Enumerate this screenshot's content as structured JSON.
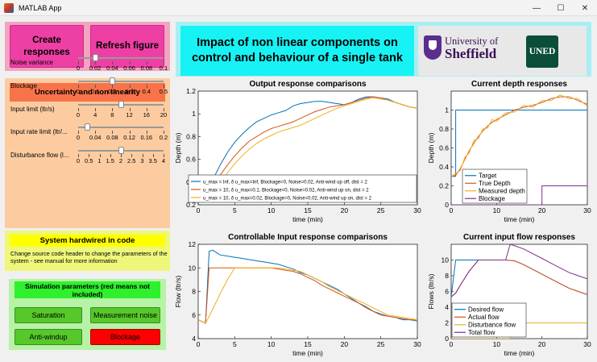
{
  "window": {
    "title": "MATLAB App",
    "minimize_glyph": "—",
    "maximize_glyph": "☐",
    "close_glyph": "✕"
  },
  "buttons": {
    "create": "Create responses",
    "refresh": "Refresh figure"
  },
  "header": {
    "title": "Impact of non linear components on control and behaviour of a single tank",
    "sheffield_line1": "University of",
    "sheffield_line2": "Sheffield",
    "uned": "UNED"
  },
  "uncertainty": {
    "title": "Uncertainty and non linearity",
    "sliders": [
      {
        "label": "Noise variance",
        "value": 0.02,
        "ticks": [
          "0",
          "0.02",
          "0.04",
          "0.06",
          "0.08",
          "0.1"
        ]
      },
      {
        "label": "Blockage",
        "value": 0.2,
        "ticks": [
          "0",
          "0.1",
          "0.2",
          "0.3",
          "0.4",
          "0.5"
        ]
      },
      {
        "label": "Input limit (ltr/s)",
        "value": 10,
        "ticks": [
          "0",
          "4",
          "8",
          "12",
          "16",
          "20"
        ]
      },
      {
        "label": "Input rate limit (ltr/...",
        "value": 0.02,
        "ticks": [
          "0",
          "0.04",
          "0.08",
          "0.12",
          "0.16",
          "0.2"
        ]
      },
      {
        "label": "Disturbance flow (l...",
        "value": 2,
        "ticks": [
          "0",
          "0.5",
          "1",
          "1.5",
          "2",
          "2.5",
          "3",
          "3.5",
          "4"
        ]
      }
    ]
  },
  "hardwired": {
    "title": "System hardwired in code",
    "text": "Change source code header to change the parameters of the system - see manual for more information"
  },
  "simulation": {
    "title": "Simulation parameters (red means not included)",
    "saturation": "Saturation",
    "measurement_noise": "Measurement noise",
    "anti_windup": "Anti-windup",
    "blockage": "Blockage",
    "colors": {
      "on": "#56c82a",
      "off": "#ff0000"
    }
  },
  "chart_data": [
    {
      "type": "line",
      "title": "Output response comparisons",
      "xlabel": "time (min)",
      "ylabel": "Depth (m)",
      "xlim": [
        0,
        30
      ],
      "ylim": [
        0.2,
        1.2
      ],
      "xticks": [
        0,
        5,
        10,
        15,
        20,
        25,
        30
      ],
      "yticks": [
        0.2,
        0.4,
        0.6,
        0.8,
        1,
        1.2
      ],
      "legend": [
        "u_max = Inf, δ u_max=Inf, Blockage=0, Noise=0.02, Anti-wind up off, dist = 2",
        "u_max = 10, δ u_max=0.1, Blockage=0, Noise=0.02, Anti-wind up on, dist = 2",
        "u_max = 10, δ u_max=0.02, Blockage=0, Noise=0.02, Anti-wind up on, dist = 2"
      ],
      "series": [
        {
          "name": "Inf",
          "color": "#0072bd",
          "x": [
            0,
            1,
            2,
            3,
            4,
            5,
            6,
            7,
            8,
            9,
            10,
            11,
            12,
            13,
            14,
            15,
            16,
            17,
            18,
            19,
            20,
            21,
            22,
            23,
            24,
            25,
            26,
            27,
            28,
            29,
            30
          ],
          "y": [
            0.25,
            0.3,
            0.42,
            0.55,
            0.66,
            0.75,
            0.82,
            0.88,
            0.93,
            0.96,
            0.99,
            1.01,
            1.03,
            1.07,
            1.09,
            1.1,
            1.11,
            1.11,
            1.1,
            1.09,
            1.08,
            1.1,
            1.13,
            1.15,
            1.15,
            1.14,
            1.13,
            1.1,
            1.08,
            1.06,
            1.05
          ]
        },
        {
          "name": "0.1",
          "color": "#d95319",
          "x": [
            0,
            1,
            2,
            3,
            4,
            5,
            6,
            7,
            8,
            9,
            10,
            11,
            12,
            13,
            14,
            15,
            16,
            17,
            18,
            19,
            20,
            21,
            22,
            23,
            24,
            25,
            26,
            27,
            28,
            29,
            30
          ],
          "y": [
            0.25,
            0.28,
            0.36,
            0.46,
            0.55,
            0.63,
            0.7,
            0.76,
            0.8,
            0.84,
            0.87,
            0.89,
            0.91,
            0.93,
            0.96,
            0.99,
            1.02,
            1.04,
            1.06,
            1.07,
            1.08,
            1.1,
            1.12,
            1.14,
            1.15,
            1.14,
            1.12,
            1.1,
            1.08,
            1.06,
            1.05
          ]
        },
        {
          "name": "0.02",
          "color": "#edb120",
          "x": [
            0,
            1,
            2,
            3,
            4,
            5,
            6,
            7,
            8,
            9,
            10,
            11,
            12,
            13,
            14,
            15,
            16,
            17,
            18,
            19,
            20,
            21,
            22,
            23,
            24,
            25,
            26,
            27,
            28,
            29,
            30
          ],
          "y": [
            0.25,
            0.26,
            0.31,
            0.39,
            0.48,
            0.56,
            0.63,
            0.69,
            0.74,
            0.78,
            0.81,
            0.84,
            0.86,
            0.88,
            0.9,
            0.93,
            0.96,
            0.99,
            1.02,
            1.05,
            1.07,
            1.09,
            1.11,
            1.13,
            1.14,
            1.13,
            1.12,
            1.1,
            1.08,
            1.06,
            1.05
          ]
        }
      ]
    },
    {
      "type": "line",
      "title": "Current depth responses",
      "xlabel": "time (min)",
      "ylabel": "Depth (m)",
      "xlim": [
        0,
        30
      ],
      "ylim": [
        0,
        1.2
      ],
      "xticks": [
        0,
        10,
        20,
        30
      ],
      "yticks": [
        0,
        0.2,
        0.4,
        0.6,
        0.8,
        1
      ],
      "legend": [
        "Target",
        "True Depth",
        "Measured depth",
        "Blockage"
      ],
      "series": [
        {
          "name": "Target",
          "color": "#0072bd",
          "x": [
            0,
            1,
            1,
            30
          ],
          "y": [
            0.3,
            0.3,
            1,
            1
          ]
        },
        {
          "name": "True Depth",
          "color": "#d95319",
          "x": [
            0,
            1,
            2,
            3,
            4,
            5,
            6,
            7,
            8,
            9,
            10,
            12,
            14,
            16,
            18,
            20,
            22,
            24,
            26,
            28,
            30
          ],
          "y": [
            0.3,
            0.31,
            0.38,
            0.48,
            0.57,
            0.65,
            0.72,
            0.78,
            0.83,
            0.87,
            0.9,
            0.95,
            1.0,
            1.03,
            1.05,
            1.08,
            1.12,
            1.14,
            1.14,
            1.1,
            1.06
          ]
        },
        {
          "name": "Measured depth",
          "color": "#edb120",
          "x": [
            0,
            1,
            2,
            3,
            4,
            5,
            6,
            7,
            8,
            9,
            10,
            12,
            14,
            16,
            18,
            20,
            22,
            24,
            26,
            28,
            30
          ],
          "y": [
            0.3,
            0.33,
            0.36,
            0.5,
            0.55,
            0.68,
            0.7,
            0.8,
            0.81,
            0.9,
            0.88,
            0.97,
            0.98,
            1.05,
            1.03,
            1.1,
            1.1,
            1.16,
            1.12,
            1.12,
            1.04
          ]
        },
        {
          "name": "Blockage",
          "color": "#7e2f8e",
          "x": [
            0,
            20,
            20,
            30
          ],
          "y": [
            0,
            0,
            0.2,
            0.2
          ]
        }
      ]
    },
    {
      "type": "line",
      "title": "Controllable Input response comparisons",
      "xlabel": "time (min)",
      "ylabel": "Flow (ltr/s)",
      "xlim": [
        0,
        30
      ],
      "ylim": [
        4,
        12
      ],
      "xticks": [
        0,
        5,
        10,
        15,
        20,
        25,
        30
      ],
      "yticks": [
        4,
        6,
        8,
        10,
        12
      ],
      "series": [
        {
          "name": "Inf",
          "color": "#0072bd",
          "x": [
            0,
            1,
            1.5,
            2,
            3,
            4,
            5,
            6,
            7,
            8,
            9,
            10,
            11,
            12,
            13,
            14,
            15,
            16,
            17,
            18,
            19,
            20,
            21,
            22,
            23,
            24,
            25,
            26,
            27,
            28,
            29,
            30
          ],
          "y": [
            5.6,
            5.3,
            11.4,
            11.5,
            11.1,
            11.0,
            10.9,
            10.8,
            10.7,
            10.6,
            10.5,
            10.4,
            10.3,
            10.1,
            9.9,
            9.6,
            9.4,
            9.1,
            8.8,
            8.5,
            8.2,
            7.8,
            7.4,
            7.0,
            6.7,
            6.3,
            6.1,
            5.9,
            5.8,
            5.6,
            5.6,
            5.5
          ]
        },
        {
          "name": "0.1",
          "color": "#d95319",
          "x": [
            0,
            1,
            1.5,
            2,
            3,
            4,
            5,
            6,
            7,
            8,
            9,
            10,
            11,
            12,
            13,
            14,
            15,
            16,
            17,
            18,
            19,
            20,
            21,
            22,
            23,
            24,
            25,
            26,
            27,
            28,
            29,
            30
          ],
          "y": [
            5.6,
            5.3,
            10.0,
            10.0,
            10.0,
            10.0,
            10.0,
            10.0,
            10.0,
            10.0,
            10.0,
            10.0,
            9.9,
            9.8,
            9.7,
            9.5,
            9.2,
            8.9,
            8.5,
            8.2,
            7.9,
            7.6,
            7.3,
            7.0,
            6.6,
            6.3,
            6.0,
            5.9,
            5.8,
            5.7,
            5.6,
            5.6
          ]
        },
        {
          "name": "0.02",
          "color": "#edb120",
          "x": [
            0,
            1,
            2,
            3,
            4,
            5,
            6,
            7,
            8,
            9,
            10,
            11,
            12,
            13,
            14,
            15,
            16,
            17,
            18,
            19,
            20,
            21,
            22,
            23,
            24,
            25,
            26,
            27,
            28,
            29,
            30
          ],
          "y": [
            5.6,
            5.3,
            6.5,
            7.8,
            9.0,
            10.0,
            10.0,
            10.0,
            10.0,
            10.0,
            10.0,
            10.0,
            9.9,
            9.8,
            9.7,
            9.4,
            9.1,
            8.8,
            8.4,
            8.1,
            7.8,
            7.5,
            7.2,
            6.9,
            6.6,
            6.3,
            6.0,
            5.9,
            5.8,
            5.7,
            5.6
          ]
        }
      ]
    },
    {
      "type": "line",
      "title": "Current input flow responses",
      "xlabel": "time (min)",
      "ylabel": "Flows (ltr/s)",
      "xlim": [
        0,
        30
      ],
      "ylim": [
        0,
        12
      ],
      "xticks": [
        0,
        10,
        20,
        30
      ],
      "yticks": [
        0,
        2,
        4,
        6,
        8,
        10
      ],
      "legend": [
        "Desired flow",
        "Actual flow",
        "Disturbance flow",
        "Total flow"
      ],
      "series": [
        {
          "name": "Desired flow",
          "color": "#0072bd",
          "x": [
            0,
            1,
            2,
            4,
            6,
            8,
            10,
            12,
            14,
            16,
            18,
            20,
            22,
            24,
            26,
            28,
            30
          ],
          "y": [
            5.3,
            10.0,
            10.0,
            10.0,
            10.0,
            10.0,
            10.0,
            10.0,
            9.9,
            9.4,
            8.8,
            8.2,
            7.6,
            7.0,
            6.4,
            6.0,
            5.6
          ]
        },
        {
          "name": "Actual flow",
          "color": "#d95319",
          "x": [
            0,
            1,
            2,
            4,
            6,
            8,
            10,
            12,
            14,
            16,
            18,
            20,
            22,
            24,
            26,
            28,
            30
          ],
          "y": [
            5.3,
            5.8,
            6.8,
            8.6,
            10.0,
            10.0,
            10.0,
            10.0,
            9.9,
            9.4,
            8.8,
            8.2,
            7.6,
            7.0,
            6.4,
            6.0,
            5.6
          ]
        },
        {
          "name": "Disturbance flow",
          "color": "#edb120",
          "x": [
            0,
            13,
            13,
            30
          ],
          "y": [
            0,
            0,
            2,
            2
          ]
        },
        {
          "name": "Total flow",
          "color": "#7e2f8e",
          "x": [
            0,
            1,
            2,
            4,
            6,
            8,
            10,
            12,
            13,
            14,
            16,
            18,
            20,
            22,
            24,
            26,
            28,
            30
          ],
          "y": [
            5.3,
            5.8,
            6.8,
            8.6,
            10.0,
            10.0,
            10.0,
            10.0,
            12.0,
            11.8,
            11.4,
            10.8,
            10.2,
            9.6,
            9.0,
            8.4,
            8.0,
            7.6
          ]
        }
      ]
    }
  ]
}
